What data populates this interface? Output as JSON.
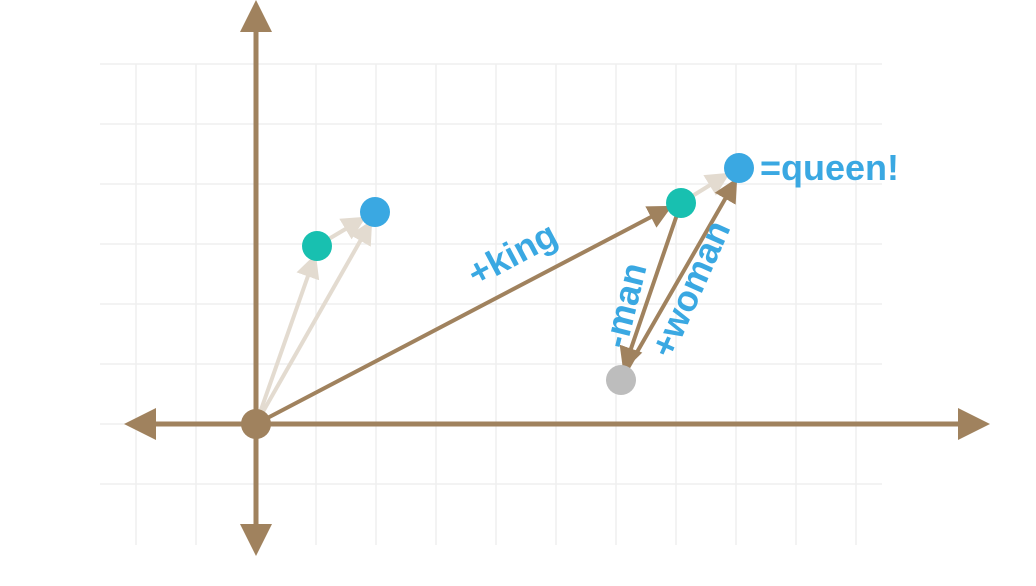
{
  "labels": {
    "king": "+king",
    "man": "-man",
    "woman": "+woman",
    "queen": "=queen!"
  }
}
